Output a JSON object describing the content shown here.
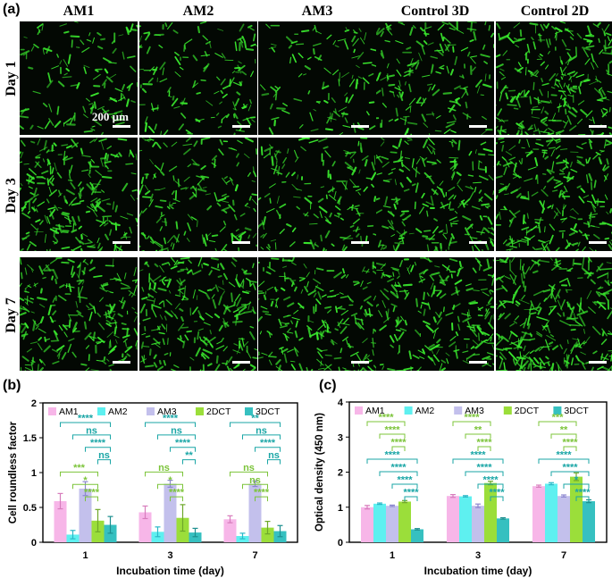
{
  "figure": {
    "panel_a": "(a)",
    "panel_b": "(b)",
    "panel_c": "(c)",
    "columns": [
      "AM1",
      "AM2",
      "AM3",
      "Control 3D",
      "Control 2D"
    ],
    "rows": [
      "Day 1",
      "Day 3",
      "Day 7"
    ],
    "scale_label": "200 µm",
    "micro_density": [
      [
        0.35,
        0.45,
        0.3,
        0.55,
        0.95
      ],
      [
        0.85,
        0.55,
        0.5,
        0.75,
        0.85
      ],
      [
        0.8,
        0.85,
        0.75,
        0.8,
        1.0
      ]
    ],
    "micro_color": "#39e62d"
  },
  "chart_data": [
    {
      "type": "bar",
      "title": "",
      "xlabel": "Incubation time (day)",
      "ylabel": "Cell roundless factor",
      "categories": [
        "1",
        "3",
        "7"
      ],
      "ylim": [
        0,
        2
      ],
      "yticks": [
        "0",
        "0.5",
        "1",
        "1.5",
        "2"
      ],
      "legend_position": "top",
      "series": [
        {
          "name": "AM1",
          "color": "#f7b6e8",
          "values": [
            0.59,
            0.43,
            0.33
          ],
          "errors": [
            0.11,
            0.09,
            0.05
          ]
        },
        {
          "name": "AM2",
          "color": "#5ef0f0",
          "values": [
            0.11,
            0.15,
            0.09
          ],
          "errors": [
            0.06,
            0.07,
            0.04
          ]
        },
        {
          "name": "AM3",
          "color": "#c3c0ec",
          "values": [
            0.77,
            0.84,
            0.84
          ],
          "errors": [
            0.1,
            0.05,
            0.04
          ]
        },
        {
          "name": "2DCT",
          "color": "#9bde3a",
          "values": [
            0.31,
            0.35,
            0.21
          ],
          "errors": [
            0.16,
            0.19,
            0.09
          ]
        },
        {
          "name": "3DCT",
          "color": "#36c0c0",
          "values": [
            0.25,
            0.14,
            0.16
          ],
          "errors": [
            0.12,
            0.06,
            0.08
          ]
        }
      ],
      "significance": [
        {
          "cat": 0,
          "text": "****",
          "color": "#1aa6a6",
          "ref": 0,
          "to": 4
        },
        {
          "cat": 0,
          "text": "ns",
          "color": "#1aa6a6",
          "ref": 1,
          "to": 4
        },
        {
          "cat": 0,
          "text": "****",
          "color": "#1aa6a6",
          "ref": 2,
          "to": 4
        },
        {
          "cat": 0,
          "text": "ns",
          "color": "#1aa6a6",
          "ref": 3,
          "to": 4
        },
        {
          "cat": 0,
          "text": "***",
          "color": "#7cc43a",
          "ref": 0,
          "to": 3
        },
        {
          "cat": 0,
          "text": "*",
          "color": "#7cc43a",
          "ref": 1,
          "to": 3
        },
        {
          "cat": 0,
          "text": "****",
          "color": "#7cc43a",
          "ref": 2,
          "to": 3
        },
        {
          "cat": 1,
          "text": "****",
          "color": "#1aa6a6",
          "ref": 0,
          "to": 4
        },
        {
          "cat": 1,
          "text": "ns",
          "color": "#1aa6a6",
          "ref": 1,
          "to": 4
        },
        {
          "cat": 1,
          "text": "****",
          "color": "#1aa6a6",
          "ref": 2,
          "to": 4
        },
        {
          "cat": 1,
          "text": "**",
          "color": "#1aa6a6",
          "ref": 3,
          "to": 4
        },
        {
          "cat": 1,
          "text": "ns",
          "color": "#7cc43a",
          "ref": 0,
          "to": 3
        },
        {
          "cat": 1,
          "text": "*",
          "color": "#7cc43a",
          "ref": 1,
          "to": 3
        },
        {
          "cat": 1,
          "text": "****",
          "color": "#7cc43a",
          "ref": 2,
          "to": 3
        },
        {
          "cat": 2,
          "text": "**",
          "color": "#1aa6a6",
          "ref": 0,
          "to": 4
        },
        {
          "cat": 2,
          "text": "ns",
          "color": "#1aa6a6",
          "ref": 1,
          "to": 4
        },
        {
          "cat": 2,
          "text": "****",
          "color": "#1aa6a6",
          "ref": 2,
          "to": 4
        },
        {
          "cat": 2,
          "text": "ns",
          "color": "#1aa6a6",
          "ref": 3,
          "to": 4
        },
        {
          "cat": 2,
          "text": "ns",
          "color": "#7cc43a",
          "ref": 0,
          "to": 3
        },
        {
          "cat": 2,
          "text": "ns",
          "color": "#7cc43a",
          "ref": 1,
          "to": 3
        },
        {
          "cat": 2,
          "text": "****",
          "color": "#7cc43a",
          "ref": 2,
          "to": 3
        }
      ]
    },
    {
      "type": "bar",
      "title": "",
      "xlabel": "Incubation time (day)",
      "ylabel": "Optical density (450 nm)",
      "categories": [
        "1",
        "3",
        "7"
      ],
      "ylim": [
        0,
        4
      ],
      "yticks": [
        "0",
        "1",
        "2",
        "3",
        "4"
      ],
      "legend_position": "top",
      "series": [
        {
          "name": "AM1",
          "color": "#f7b6e8",
          "values": [
            1.0,
            1.32,
            1.6
          ],
          "errors": [
            0.05,
            0.04,
            0.03
          ]
        },
        {
          "name": "AM2",
          "color": "#5ef0f0",
          "values": [
            1.1,
            1.31,
            1.67
          ],
          "errors": [
            0.02,
            0.02,
            0.03
          ]
        },
        {
          "name": "AM3",
          "color": "#c3c0ec",
          "values": [
            1.04,
            1.04,
            1.32
          ],
          "errors": [
            0.02,
            0.05,
            0.03
          ]
        },
        {
          "name": "2DCT",
          "color": "#9bde3a",
          "values": [
            1.16,
            1.69,
            1.87
          ],
          "errors": [
            0.03,
            0.05,
            0.11
          ]
        },
        {
          "name": "3DCT",
          "color": "#36c0c0",
          "values": [
            0.37,
            0.68,
            1.17
          ],
          "errors": [
            0.02,
            0.02,
            0.04
          ]
        }
      ],
      "significance": [
        {
          "cat": 0,
          "text": "****",
          "color": "#7cc43a",
          "ref": 0,
          "to": 3
        },
        {
          "cat": 0,
          "text": "****",
          "color": "#7cc43a",
          "ref": 1,
          "to": 3
        },
        {
          "cat": 0,
          "text": "****",
          "color": "#7cc43a",
          "ref": 2,
          "to": 3
        },
        {
          "cat": 0,
          "text": "****",
          "color": "#1aa6a6",
          "ref": 0,
          "to": 4
        },
        {
          "cat": 0,
          "text": "****",
          "color": "#1aa6a6",
          "ref": 1,
          "to": 4
        },
        {
          "cat": 0,
          "text": "****",
          "color": "#1aa6a6",
          "ref": 2,
          "to": 4
        },
        {
          "cat": 0,
          "text": "****",
          "color": "#1aa6a6",
          "ref": 3,
          "to": 4
        },
        {
          "cat": 1,
          "text": "****",
          "color": "#7cc43a",
          "ref": 0,
          "to": 3
        },
        {
          "cat": 1,
          "text": "**",
          "color": "#7cc43a",
          "ref": 1,
          "to": 3
        },
        {
          "cat": 1,
          "text": "****",
          "color": "#7cc43a",
          "ref": 2,
          "to": 3
        },
        {
          "cat": 1,
          "text": "****",
          "color": "#1aa6a6",
          "ref": 0,
          "to": 4
        },
        {
          "cat": 1,
          "text": "****",
          "color": "#1aa6a6",
          "ref": 1,
          "to": 4
        },
        {
          "cat": 1,
          "text": "****",
          "color": "#1aa6a6",
          "ref": 2,
          "to": 4
        },
        {
          "cat": 1,
          "text": "****",
          "color": "#1aa6a6",
          "ref": 3,
          "to": 4
        },
        {
          "cat": 2,
          "text": "***",
          "color": "#7cc43a",
          "ref": 0,
          "to": 3
        },
        {
          "cat": 2,
          "text": "**",
          "color": "#7cc43a",
          "ref": 1,
          "to": 3
        },
        {
          "cat": 2,
          "text": "****",
          "color": "#7cc43a",
          "ref": 2,
          "to": 3
        },
        {
          "cat": 2,
          "text": "****",
          "color": "#1aa6a6",
          "ref": 0,
          "to": 4
        },
        {
          "cat": 2,
          "text": "****",
          "color": "#1aa6a6",
          "ref": 1,
          "to": 4
        },
        {
          "cat": 2,
          "text": "*",
          "color": "#1aa6a6",
          "ref": 2,
          "to": 4
        },
        {
          "cat": 2,
          "text": "****",
          "color": "#1aa6a6",
          "ref": 3,
          "to": 4
        }
      ]
    }
  ]
}
